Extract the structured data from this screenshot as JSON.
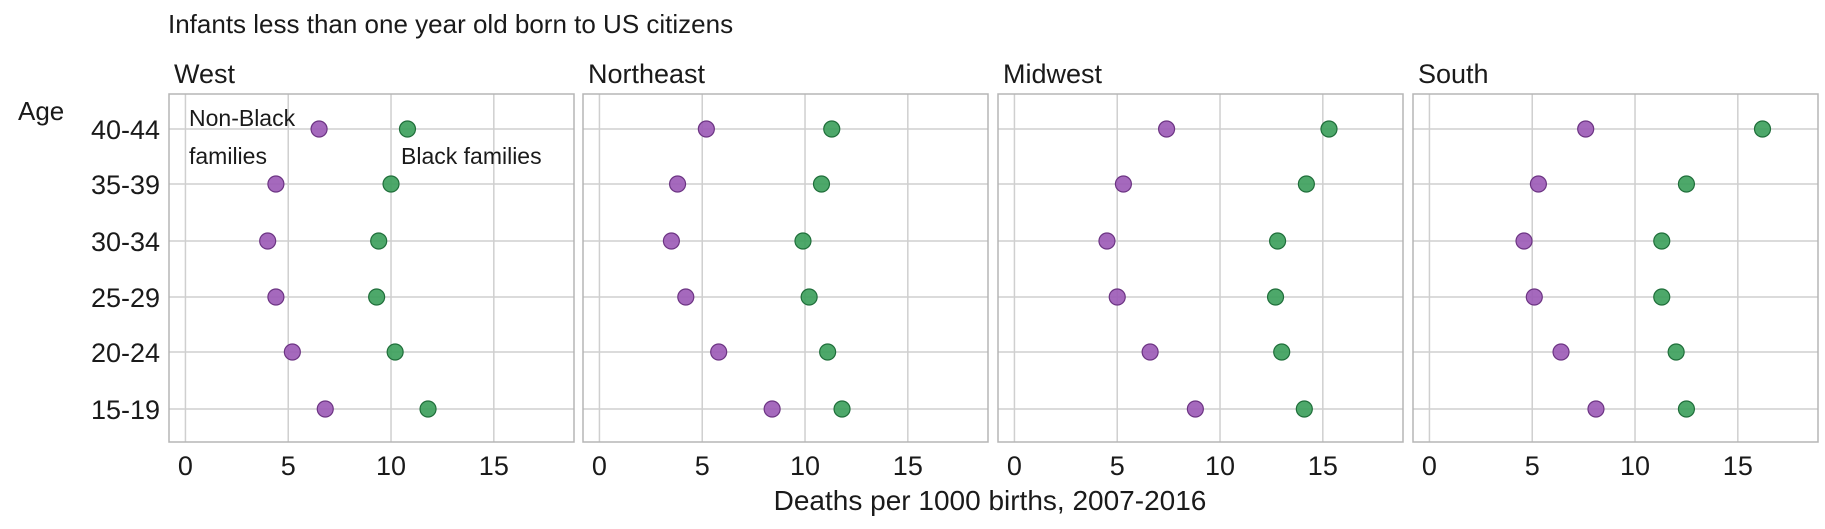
{
  "chart_data": {
    "type": "scatter",
    "title": "Infants less than one year old born to US citizens",
    "xlabel": "Deaths per 1000 births, 2007-2016",
    "ylabel": "Age",
    "categories": [
      "40-44",
      "35-39",
      "30-34",
      "25-29",
      "20-24",
      "15-19"
    ],
    "xticks": [
      "0",
      "5",
      "10",
      "15"
    ],
    "xlim": [
      -0.8,
      18.9
    ],
    "grid": true,
    "colors": {
      "non_black": "#9b59b6",
      "black": "#3a9e5a"
    },
    "annotations": {
      "non_black": "Non-Black families",
      "black": "Black families"
    },
    "panels": [
      {
        "name": "West",
        "series": [
          {
            "key": "non_black",
            "values": [
              6.5,
              4.4,
              4.0,
              4.4,
              5.2,
              6.8
            ]
          },
          {
            "key": "black",
            "values": [
              10.8,
              10.0,
              9.4,
              9.3,
              10.2,
              11.8
            ]
          }
        ]
      },
      {
        "name": "Northeast",
        "series": [
          {
            "key": "non_black",
            "values": [
              5.2,
              3.8,
              3.5,
              4.2,
              5.8,
              8.4
            ]
          },
          {
            "key": "black",
            "values": [
              11.3,
              10.8,
              9.9,
              10.2,
              11.1,
              11.8
            ]
          }
        ]
      },
      {
        "name": "Midwest",
        "series": [
          {
            "key": "non_black",
            "values": [
              7.4,
              5.3,
              4.5,
              5.0,
              6.6,
              8.8
            ]
          },
          {
            "key": "black",
            "values": [
              15.3,
              14.2,
              12.8,
              12.7,
              13.0,
              14.1
            ]
          }
        ]
      },
      {
        "name": "South",
        "series": [
          {
            "key": "non_black",
            "values": [
              7.6,
              5.3,
              4.6,
              5.1,
              6.4,
              8.1
            ]
          },
          {
            "key": "black",
            "values": [
              16.2,
              12.5,
              11.3,
              11.3,
              12.0,
              12.5
            ]
          }
        ]
      }
    ]
  }
}
